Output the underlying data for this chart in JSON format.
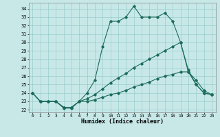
{
  "xlabel": "Humidex (Indice chaleur)",
  "background_color": "#c8e8e8",
  "grid_color": "#99cccc",
  "line_color": "#1a6b5a",
  "x_ticks": [
    0,
    1,
    2,
    3,
    4,
    5,
    6,
    7,
    8,
    9,
    10,
    11,
    12,
    13,
    14,
    15,
    16,
    17,
    18,
    19,
    20,
    21,
    22,
    23
  ],
  "x_tick_labels": [
    "0",
    "1",
    "2",
    "3",
    "4",
    "5",
    "6",
    "7",
    "8",
    "9",
    "10",
    "11",
    "12",
    "13",
    "14",
    "15",
    "16",
    "17",
    "18",
    "19",
    "20",
    "21",
    "22",
    "23"
  ],
  "y_ticks": [
    22,
    23,
    24,
    25,
    26,
    27,
    28,
    29,
    30,
    31,
    32,
    33,
    34
  ],
  "ylim": [
    21.7,
    34.7
  ],
  "xlim": [
    -0.5,
    23.5
  ],
  "line1_x": [
    0,
    1,
    2,
    3,
    4,
    5,
    6,
    7,
    8,
    9,
    10,
    11,
    12,
    13,
    14,
    15,
    16,
    17,
    18,
    19,
    20,
    21,
    22,
    23
  ],
  "line1_y": [
    24.0,
    23.0,
    23.0,
    23.0,
    22.2,
    22.2,
    23.0,
    24.0,
    25.5,
    29.5,
    32.5,
    32.5,
    33.0,
    34.3,
    33.0,
    33.0,
    33.0,
    33.5,
    32.5,
    30.0,
    26.5,
    25.0,
    24.0,
    23.8
  ],
  "line2_x": [
    0,
    1,
    2,
    3,
    4,
    5,
    6,
    7,
    8,
    9,
    10,
    11,
    12,
    13,
    14,
    15,
    16,
    17,
    18,
    19,
    20,
    21,
    22,
    23
  ],
  "line2_y": [
    24.0,
    23.0,
    23.0,
    23.0,
    22.3,
    22.3,
    23.0,
    23.3,
    23.8,
    24.5,
    25.2,
    25.8,
    26.3,
    27.0,
    27.5,
    28.0,
    28.5,
    29.0,
    29.5,
    30.0,
    26.7,
    25.0,
    24.0,
    23.8
  ],
  "line3_x": [
    0,
    1,
    2,
    3,
    4,
    5,
    6,
    7,
    8,
    9,
    10,
    11,
    12,
    13,
    14,
    15,
    16,
    17,
    18,
    19,
    20,
    21,
    22,
    23
  ],
  "line3_y": [
    24.0,
    23.0,
    23.0,
    23.0,
    22.3,
    22.3,
    23.0,
    23.0,
    23.2,
    23.5,
    23.8,
    24.0,
    24.3,
    24.7,
    25.0,
    25.3,
    25.7,
    26.0,
    26.2,
    26.5,
    26.5,
    25.5,
    24.3,
    23.8
  ]
}
